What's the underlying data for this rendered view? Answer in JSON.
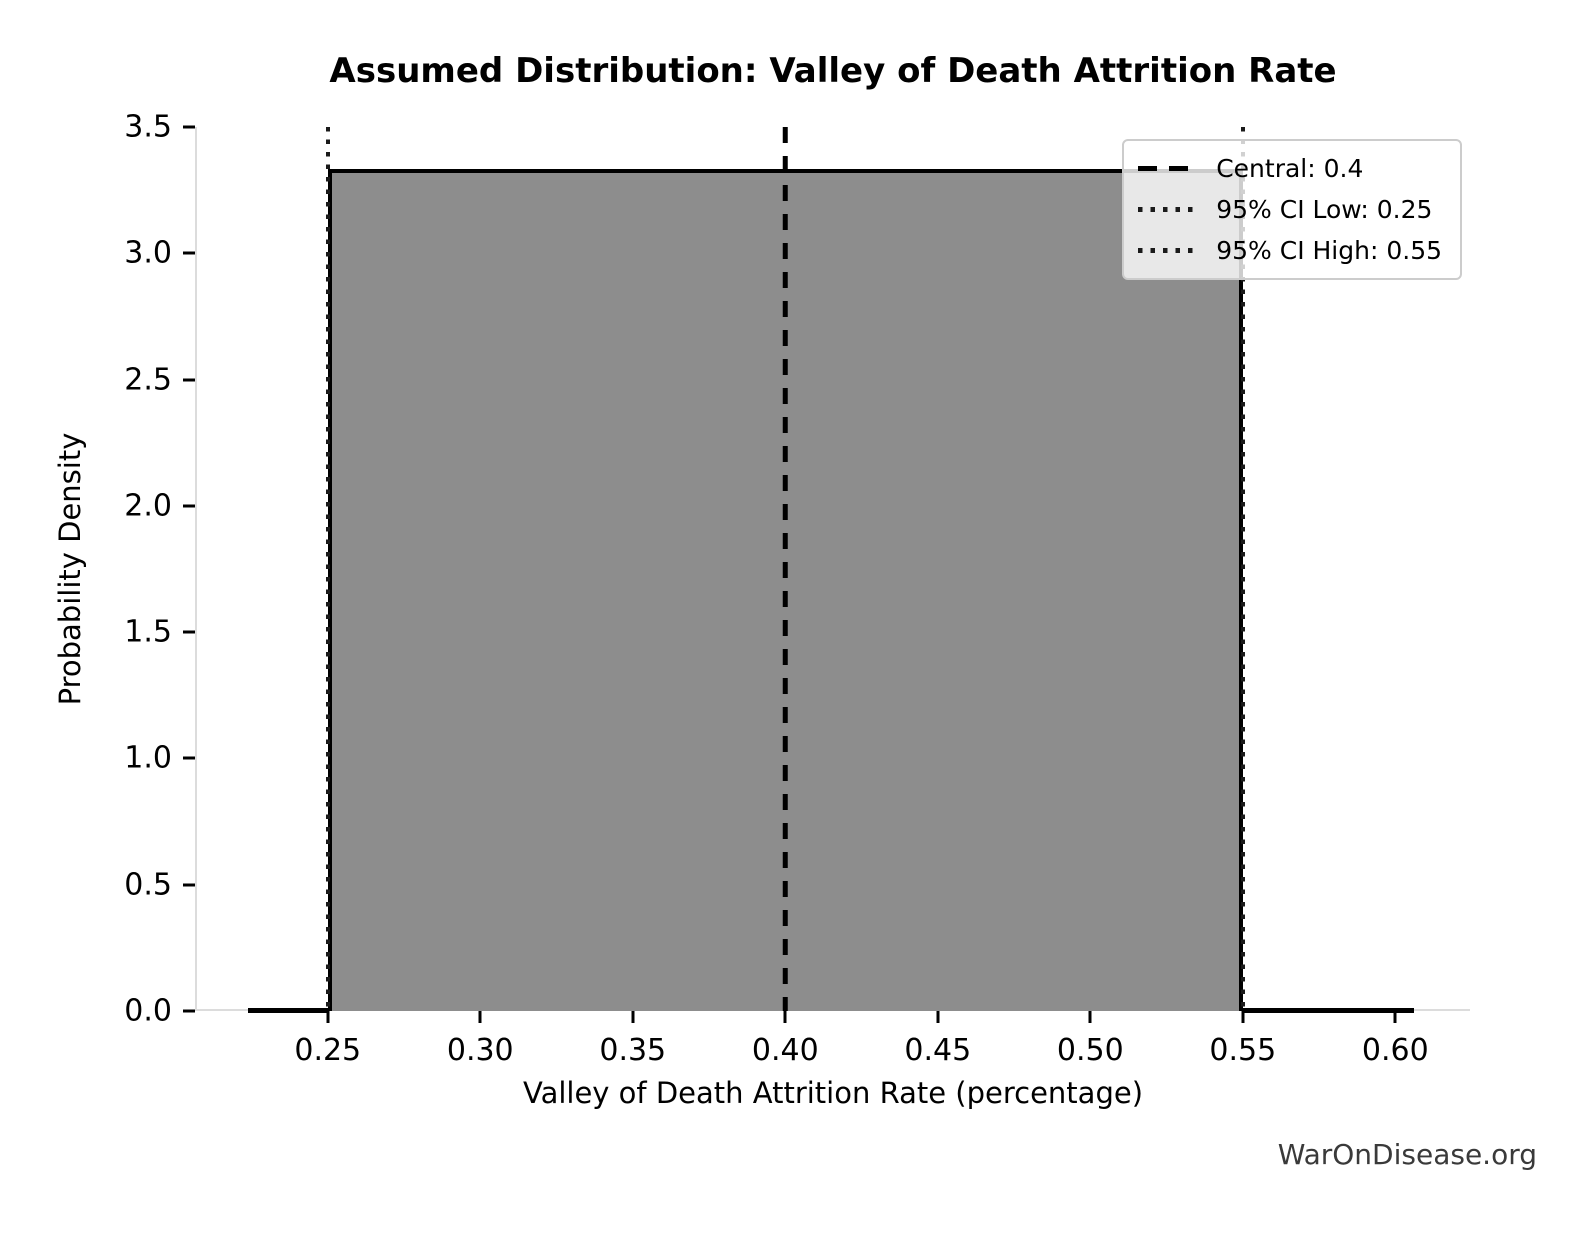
{
  "title": "Assumed Distribution: Valley of Death Attrition Rate",
  "watermark": "WarOnDisease.org",
  "chart_data": {
    "type": "area",
    "distribution": "uniform",
    "title": "Assumed Distribution: Valley of Death Attrition Rate",
    "xlabel": "Valley of Death Attrition Rate (percentage)",
    "ylabel": "Probability Density",
    "xlim": [
      0.2068,
      0.6245
    ],
    "ylim": [
      0,
      3.5
    ],
    "xticks": [
      0.25,
      0.3,
      0.35,
      0.4,
      0.45,
      0.5,
      0.55,
      0.6
    ],
    "xtick_labels": [
      "0.25",
      "0.30",
      "0.35",
      "0.40",
      "0.45",
      "0.50",
      "0.55",
      "0.60"
    ],
    "yticks": [
      0.0,
      0.5,
      1.0,
      1.5,
      2.0,
      2.5,
      3.0,
      3.5
    ],
    "ytick_labels": [
      "0.0",
      "0.5",
      "1.0",
      "1.5",
      "2.0",
      "2.5",
      "3.0",
      "3.5"
    ],
    "uniform_low": 0.25,
    "uniform_high": 0.55,
    "density_height": 3.3333,
    "pdf_line_x_start": 0.224,
    "pdf_line_x_end": 0.606,
    "central": 0.4,
    "ci_low": 0.25,
    "ci_high": 0.55,
    "grid": false,
    "legend_position": "upper right",
    "colors": {
      "fill": "#8d8d8d",
      "line": "#000000",
      "spine": "#dcdcdc",
      "watermark": "#3a3a3a"
    },
    "legend": [
      {
        "style": "dashed",
        "label": "Central: 0.4"
      },
      {
        "style": "dotted",
        "label": "95% CI Low: 0.25"
      },
      {
        "style": "dotted",
        "label": "95% CI High: 0.55"
      }
    ]
  }
}
